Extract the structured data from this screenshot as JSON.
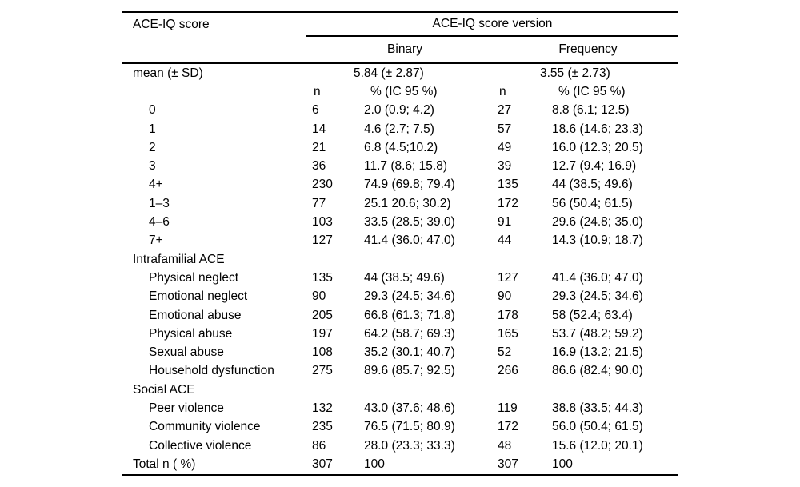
{
  "page": {
    "background": "#ffffff",
    "text_color": "#000000",
    "rule_color": "#000000"
  },
  "table": {
    "corner_label": "ACE-IQ score",
    "group_label": "ACE-IQ score version",
    "col_groups": [
      {
        "label": "Binary"
      },
      {
        "label": "Frequency"
      }
    ],
    "mean_row": {
      "label": "mean (± SD)",
      "binary": "5.84 (± 2.87)",
      "frequency": "3.55 (± 2.73)"
    },
    "stat_header": {
      "n": "n",
      "pct": "% (IC 95 %)"
    },
    "rows": [
      {
        "label": "0",
        "indent": true,
        "b_n": "6",
        "b_pct": "2.0 (0.9; 4.2)",
        "f_n": "27",
        "f_pct": "8.8 (6.1; 12.5)"
      },
      {
        "label": "1",
        "indent": true,
        "b_n": "14",
        "b_pct": "4.6 (2.7; 7.5)",
        "f_n": "57",
        "f_pct": "18.6 (14.6; 23.3)"
      },
      {
        "label": "2",
        "indent": true,
        "b_n": "21",
        "b_pct": "6.8 (4.5;10.2)",
        "f_n": "49",
        "f_pct": "16.0 (12.3; 20.5)"
      },
      {
        "label": "3",
        "indent": true,
        "b_n": "36",
        "b_pct": "11.7 (8.6; 15.8)",
        "f_n": "39",
        "f_pct": "12.7 (9.4; 16.9)"
      },
      {
        "label": "4+",
        "indent": true,
        "b_n": "230",
        "b_pct": "74.9 (69.8; 79.4)",
        "f_n": "135",
        "f_pct": "44 (38.5; 49.6)"
      },
      {
        "label": "1–3",
        "indent": true,
        "b_n": "77",
        "b_pct": "25.1 20.6; 30.2)",
        "f_n": "172",
        "f_pct": "56 (50.4; 61.5)"
      },
      {
        "label": "4–6",
        "indent": true,
        "b_n": "103",
        "b_pct": "33.5 (28.5; 39.0)",
        "f_n": "91",
        "f_pct": "29.6 (24.8; 35.0)"
      },
      {
        "label": "7+",
        "indent": true,
        "b_n": "127",
        "b_pct": "41.4 (36.0; 47.0)",
        "f_n": "44",
        "f_pct": "14.3 (10.9; 18.7)"
      },
      {
        "label": "Intrafamilial ACE",
        "indent": false,
        "b_n": "",
        "b_pct": "",
        "f_n": "",
        "f_pct": ""
      },
      {
        "label": "Physical neglect",
        "indent": true,
        "b_n": "135",
        "b_pct": "44 (38.5; 49.6)",
        "f_n": "127",
        "f_pct": "41.4 (36.0; 47.0)"
      },
      {
        "label": "Emotional neglect",
        "indent": true,
        "b_n": "90",
        "b_pct": "29.3 (24.5; 34.6)",
        "f_n": "90",
        "f_pct": "29.3 (24.5; 34.6)"
      },
      {
        "label": "Emotional abuse",
        "indent": true,
        "b_n": "205",
        "b_pct": "66.8 (61.3; 71.8)",
        "f_n": "178",
        "f_pct": "58 (52.4; 63.4)"
      },
      {
        "label": "Physical abuse",
        "indent": true,
        "b_n": "197",
        "b_pct": "64.2 (58.7; 69.3)",
        "f_n": "165",
        "f_pct": "53.7 (48.2; 59.2)"
      },
      {
        "label": "Sexual abuse",
        "indent": true,
        "b_n": "108",
        "b_pct": "35.2 (30.1; 40.7)",
        "f_n": "52",
        "f_pct": "16.9 (13.2; 21.5)"
      },
      {
        "label": "Household dysfunction",
        "indent": true,
        "b_n": "275",
        "b_pct": "89.6 (85.7; 92.5)",
        "f_n": "266",
        "f_pct": "86.6 (82.4; 90.0)"
      },
      {
        "label": "Social ACE",
        "indent": false,
        "b_n": "",
        "b_pct": "",
        "f_n": "",
        "f_pct": ""
      },
      {
        "label": "Peer violence",
        "indent": true,
        "b_n": "132",
        "b_pct": "43.0 (37.6; 48.6)",
        "f_n": "119",
        "f_pct": "38.8 (33.5; 44.3)"
      },
      {
        "label": "Community violence",
        "indent": true,
        "b_n": "235",
        "b_pct": "76.5 (71.5; 80.9)",
        "f_n": "172",
        "f_pct": "56.0 (50.4; 61.5)"
      },
      {
        "label": "Collective violence",
        "indent": true,
        "b_n": "86",
        "b_pct": "28.0 (23.3; 33.3)",
        "f_n": "48",
        "f_pct": "15.6 (12.0; 20.1)"
      },
      {
        "label": "Total n ( %)",
        "indent": false,
        "b_n": "307",
        "b_pct": "100",
        "f_n": "307",
        "f_pct": "100"
      }
    ]
  }
}
